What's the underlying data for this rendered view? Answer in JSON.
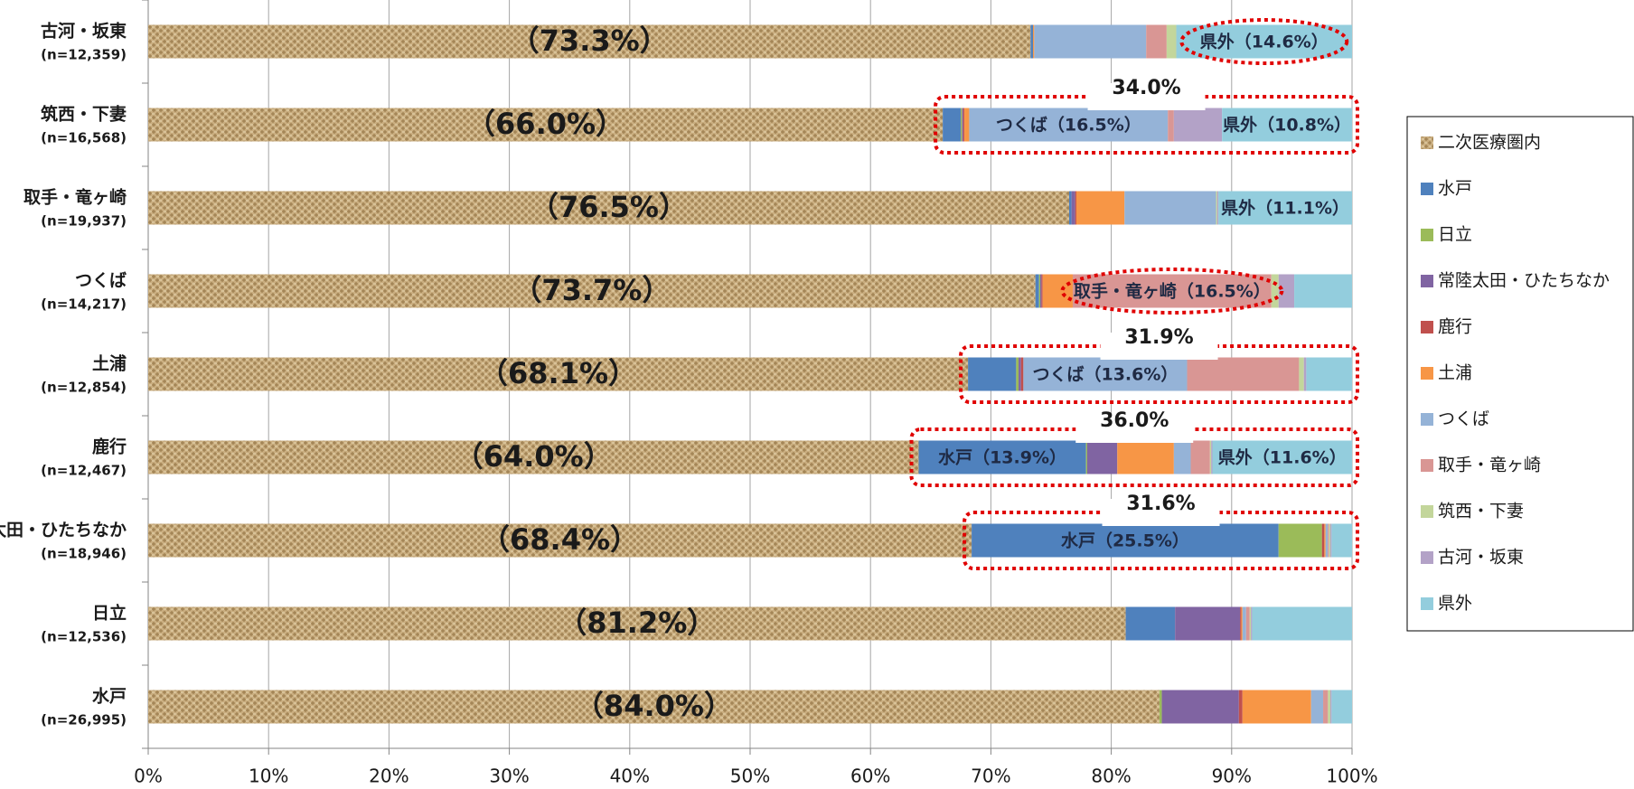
{
  "chart_data": {
    "type": "stacked_barh",
    "categories": [
      "古河・坂東",
      "筑西・下妻",
      "取手・竜ヶ崎",
      "つくば",
      "土浦",
      "鹿行",
      "常陸太田・ひたちなか",
      "日立",
      "水戸"
    ],
    "category_notes": [
      "(n=12,359)",
      "(n=16,568)",
      "(n=19,937)",
      "(n=14,217)",
      "(n=12,854)",
      "(n=12,467)",
      "(n=18,946)",
      "(n=12,536)",
      "(n=26,995)"
    ],
    "series": [
      {
        "name": "二次医療圏内",
        "color": "#c9ad7f",
        "pattern": "texture",
        "values": [
          73.3,
          66.0,
          76.5,
          73.7,
          68.1,
          64.0,
          68.4,
          81.2,
          84.0
        ],
        "value_labels": [
          "（73.3%）",
          "（66.0%）",
          "（76.5%）",
          "（73.7%）",
          "（68.1%）",
          "（64.0%）",
          "（68.4%）",
          "（81.2%）",
          "（84.0%）"
        ]
      },
      {
        "name": "水戸",
        "color": "#4f81bd",
        "values": [
          0.2,
          1.5,
          0.2,
          0.3,
          4.0,
          13.9,
          25.5,
          4.1,
          0
        ],
        "value_labels": [
          null,
          null,
          null,
          null,
          null,
          "水戸（13.9%）",
          "水戸（25.5%）",
          null,
          null
        ]
      },
      {
        "name": "日立",
        "color": "#9bbb59",
        "values": [
          0,
          0.1,
          0,
          0.1,
          0.2,
          0.1,
          3.6,
          0,
          0.2
        ]
      },
      {
        "name": "常陸太田・ひたちなか",
        "color": "#8064a2",
        "values": [
          0,
          0.1,
          0.3,
          0.1,
          0.2,
          2.5,
          0,
          5.4,
          6.4
        ]
      },
      {
        "name": "鹿行",
        "color": "#c0504d",
        "values": [
          0,
          0.1,
          0.1,
          0.1,
          0.2,
          0,
          0.2,
          0.1,
          0.3
        ]
      },
      {
        "name": "土浦",
        "color": "#f79646",
        "values": [
          0.1,
          0.4,
          4.0,
          2.5,
          0,
          4.7,
          0.1,
          0.1,
          5.7
        ]
      },
      {
        "name": "つくば",
        "color": "#95b3d7",
        "values": [
          9.3,
          16.5,
          7.6,
          0,
          13.6,
          1.4,
          0.2,
          0.3,
          1.0
        ],
        "value_labels": [
          null,
          "つくば（16.5%）",
          null,
          null,
          "つくば（13.6%）",
          null,
          null,
          null,
          null
        ]
      },
      {
        "name": "取手・竜ヶ崎",
        "color": "#d99694",
        "values": [
          1.7,
          0.5,
          0,
          16.5,
          9.3,
          1.6,
          0.1,
          0.3,
          0.4
        ],
        "value_labels": [
          null,
          null,
          null,
          "取手・竜ヶ崎（16.5%）",
          null,
          null,
          null,
          null,
          null
        ]
      },
      {
        "name": "筑西・下妻",
        "color": "#c3d69b",
        "values": [
          0.8,
          0,
          0.1,
          0.6,
          0.4,
          0.1,
          0.1,
          0.1,
          0.2
        ]
      },
      {
        "name": "古河・坂東",
        "color": "#b3a2c7",
        "values": [
          0,
          4.0,
          0.1,
          1.3,
          0.2,
          0.1,
          0.1,
          0.1,
          0.1
        ]
      },
      {
        "name": "県外",
        "color": "#93cddd",
        "values": [
          14.6,
          10.8,
          11.1,
          4.8,
          3.8,
          11.6,
          1.7,
          8.3,
          1.7
        ],
        "value_labels": [
          "県外（14.6%）",
          "県外（10.8%）",
          "県外（11.1%）",
          null,
          null,
          "県外（11.6%）",
          null,
          null,
          null
        ]
      }
    ],
    "annotations": [
      {
        "category": "筑西・下妻",
        "value": 34.0,
        "label": "34.0%"
      },
      {
        "category": "土浦",
        "value": 31.9,
        "label": "31.9%"
      },
      {
        "category": "鹿行",
        "value": 36.0,
        "label": "36.0%"
      },
      {
        "category": "常陸太田・ひたちなか",
        "value": 31.6,
        "label": "31.6%"
      }
    ],
    "xlim": [
      0,
      100
    ],
    "xticks": [
      {
        "value": 0,
        "label": "0%"
      },
      {
        "value": 10,
        "label": "10%"
      },
      {
        "value": 20,
        "label": "20%"
      },
      {
        "value": 30,
        "label": "30%"
      },
      {
        "value": 40,
        "label": "40%"
      },
      {
        "value": 50,
        "label": "50%"
      },
      {
        "value": 60,
        "label": "60%"
      },
      {
        "value": 70,
        "label": "70%"
      },
      {
        "value": 80,
        "label": "80%"
      },
      {
        "value": 90,
        "label": "90%"
      },
      {
        "value": 100,
        "label": "100%"
      }
    ],
    "grid": true,
    "legend": "right"
  }
}
